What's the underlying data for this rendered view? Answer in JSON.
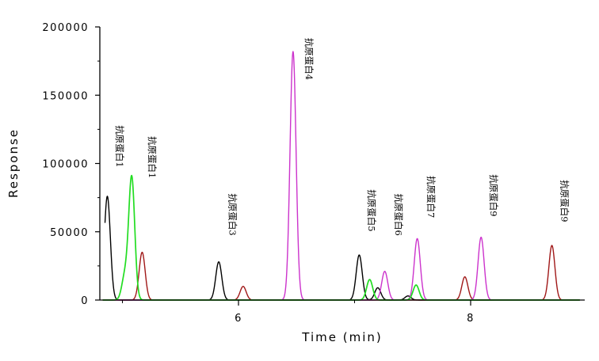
{
  "chart_data": {
    "type": "line",
    "title": "",
    "xlabel": "Time (min)",
    "ylabel": "Response",
    "xlim": [
      4.75,
      9.0
    ],
    "ylim": [
      0,
      200000
    ],
    "x_ticks": [
      6,
      8
    ],
    "x_tick_labels": [
      "6",
      "8"
    ],
    "y_ticks": [
      0,
      50000,
      100000,
      150000,
      200000
    ],
    "y_tick_labels": [
      "0",
      "50000",
      "100000",
      "150000",
      "200000"
    ],
    "grid": false,
    "legend": "none",
    "series": [
      {
        "color": "#000000",
        "peaks": [
          {
            "time": 4.87,
            "height": 76000
          },
          {
            "time": 5.83,
            "height": 28000
          },
          {
            "time": 7.04,
            "height": 33000
          },
          {
            "time": 7.2,
            "height": 9000
          },
          {
            "time": 7.46,
            "height": 3000
          }
        ]
      },
      {
        "color": "#22dd22",
        "peaks": [
          {
            "time": 5.02,
            "height": 17000
          },
          {
            "time": 5.08,
            "height": 90000
          },
          {
            "time": 7.13,
            "height": 15000
          },
          {
            "time": 7.53,
            "height": 11000
          }
        ]
      },
      {
        "color": "#a01818",
        "peaks": [
          {
            "time": 5.17,
            "height": 35000
          },
          {
            "time": 6.04,
            "height": 10000
          },
          {
            "time": 7.95,
            "height": 17000
          },
          {
            "time": 8.7,
            "height": 40000
          }
        ]
      },
      {
        "color": "#cc33cc",
        "peaks": [
          {
            "time": 6.47,
            "height": 182000
          },
          {
            "time": 7.26,
            "height": 21000
          },
          {
            "time": 7.54,
            "height": 45000
          },
          {
            "time": 8.09,
            "height": 46000
          }
        ]
      }
    ],
    "annotations": [
      {
        "text": "抗原蛋白1",
        "x": 4.95,
        "y": 128000
      },
      {
        "text": "抗原蛋白1",
        "x": 5.23,
        "y": 120000
      },
      {
        "text": "抗原蛋白3",
        "x": 5.92,
        "y": 78000
      },
      {
        "text": "抗原蛋白4",
        "x": 6.58,
        "y": 192000
      },
      {
        "text": "抗原蛋白5",
        "x": 7.12,
        "y": 81000
      },
      {
        "text": "抗原蛋白6",
        "x": 7.35,
        "y": 78000
      },
      {
        "text": "抗原蛋白7",
        "x": 7.63,
        "y": 91000
      },
      {
        "text": "抗原蛋白9",
        "x": 8.17,
        "y": 92000
      },
      {
        "text": "抗原蛋白9",
        "x": 8.78,
        "y": 88000
      }
    ]
  }
}
